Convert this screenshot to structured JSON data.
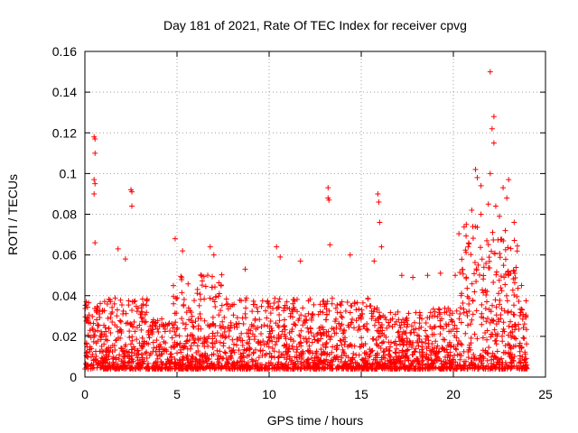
{
  "chart_data": {
    "type": "scatter",
    "title": "Day 181 of 2021, Rate Of TEC Index for receiver cpvg",
    "xlabel": "GPS time / hours",
    "ylabel": "ROTI / TECUs",
    "xlim": [
      0,
      25
    ],
    "ylim": [
      0,
      0.16
    ],
    "xticks": [
      "0",
      "5",
      "10",
      "15",
      "20",
      "25"
    ],
    "yticks": [
      "0",
      "0.02",
      "0.04",
      "0.06",
      "0.08",
      "0.1",
      "0.12",
      "0.14",
      "0.16"
    ],
    "grid": true,
    "marker": "+",
    "color": "#ff0000",
    "points": [
      [
        0.5,
        0.118
      ],
      [
        0.55,
        0.117
      ],
      [
        0.55,
        0.11
      ],
      [
        0.5,
        0.097
      ],
      [
        0.55,
        0.095
      ],
      [
        0.5,
        0.09
      ],
      [
        0.55,
        0.066
      ],
      [
        2.5,
        0.092
      ],
      [
        2.55,
        0.091
      ],
      [
        2.55,
        0.084
      ],
      [
        13.2,
        0.093
      ],
      [
        13.2,
        0.088
      ],
      [
        13.25,
        0.087
      ],
      [
        15.9,
        0.09
      ],
      [
        15.95,
        0.086
      ],
      [
        16.0,
        0.076
      ],
      [
        22.0,
        0.15
      ],
      [
        22.2,
        0.128
      ],
      [
        22.1,
        0.122
      ],
      [
        22.2,
        0.115
      ],
      [
        21.2,
        0.102
      ],
      [
        21.3,
        0.098
      ],
      [
        22.0,
        0.1
      ],
      [
        23.0,
        0.097
      ],
      [
        21.5,
        0.094
      ],
      [
        22.7,
        0.093
      ],
      [
        1.8,
        0.063
      ],
      [
        2.2,
        0.058
      ],
      [
        4.9,
        0.068
      ],
      [
        5.3,
        0.062
      ],
      [
        6.8,
        0.064
      ],
      [
        7.0,
        0.06
      ],
      [
        8.7,
        0.053
      ],
      [
        10.4,
        0.064
      ],
      [
        10.6,
        0.059
      ],
      [
        11.7,
        0.057
      ],
      [
        13.3,
        0.065
      ],
      [
        14.4,
        0.06
      ],
      [
        15.7,
        0.057
      ],
      [
        16.1,
        0.064
      ],
      [
        17.2,
        0.05
      ],
      [
        17.8,
        0.049
      ],
      [
        18.6,
        0.05
      ],
      [
        19.3,
        0.051
      ],
      [
        20.1,
        0.05
      ],
      [
        20.7,
        0.075
      ],
      [
        21.0,
        0.082
      ],
      [
        21.5,
        0.08
      ],
      [
        21.9,
        0.085
      ],
      [
        22.3,
        0.084
      ],
      [
        22.5,
        0.079
      ],
      [
        22.9,
        0.088
      ],
      [
        23.3,
        0.076
      ],
      [
        23.7,
        0.045
      ]
    ]
  }
}
